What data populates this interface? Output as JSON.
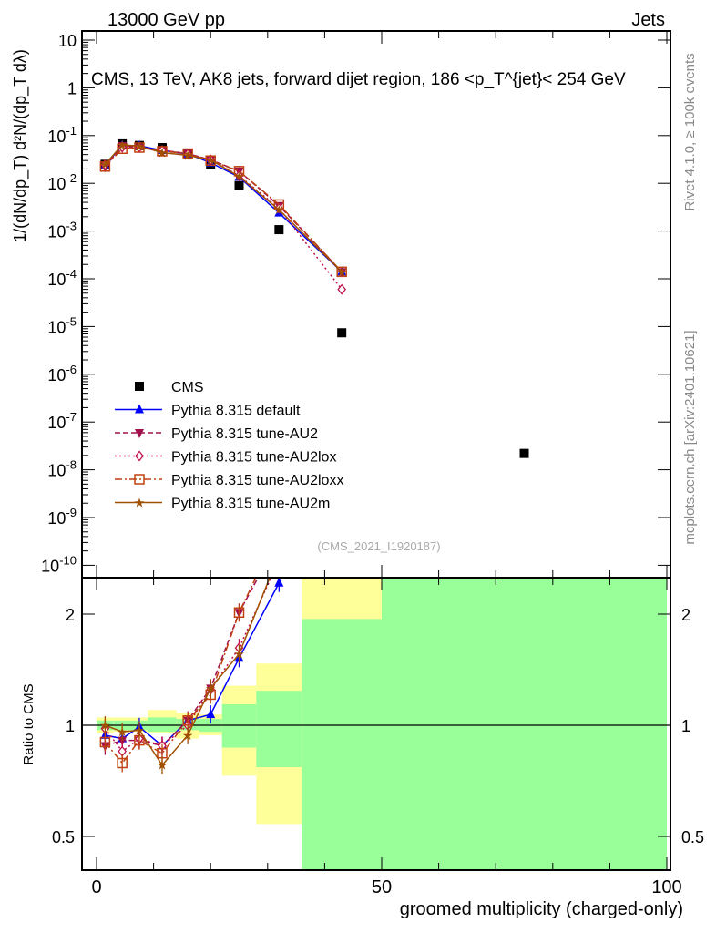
{
  "header": {
    "left": "13000 GeV pp",
    "right": "Jets"
  },
  "side": {
    "rivet": "Rivet 4.1.0, ≥ 100k events",
    "mcplots": "mcplots.cern.ch [arXiv:2401.10621]"
  },
  "chart_data": [
    {
      "type": "scatter",
      "title": "CMS, 13 TeV, AK8 jets, forward dijet region, 186 <p_T^{jet}< 254 GeV",
      "ylabel": "1/(dN/dp_T) d²N/(dp_T dλ)",
      "yscale": "log",
      "ylim": [
        1e-10,
        10
      ],
      "xlim": [
        -1,
        100
      ],
      "watermark": "(CMS_2021_I1920187)",
      "yticks": [
        "10",
        "1",
        "10^{-1}",
        "10^{-2}",
        "10^{-3}",
        "10^{-4}",
        "10^{-5}",
        "10^{-6}",
        "10^{-7}",
        "10^{-8}",
        "10^{-9}",
        "10^{-10}"
      ],
      "legend_position": "bottom-left",
      "x": [
        1.5,
        4.5,
        7.5,
        11.5,
        16,
        20,
        25,
        32,
        43,
        75
      ],
      "series": [
        {
          "name": "CMS",
          "color": "#000000",
          "marker": "square",
          "style": "none",
          "values": [
            0.025,
            0.067,
            0.062,
            0.056,
            0.041,
            0.025,
            0.0089,
            0.00107,
            7.4e-06,
            2.2e-08
          ]
        },
        {
          "name": "Pythia 8.315 default",
          "color": "#0000ff",
          "marker": "triangle-up",
          "style": "solid",
          "values": [
            0.024,
            0.062,
            0.061,
            0.049,
            0.041,
            0.027,
            0.0135,
            0.0024,
            0.00014
          ]
        },
        {
          "name": "Pythia 8.315 tune-AU2",
          "color": "#a0104a",
          "marker": "triangle-down",
          "style": "dashed",
          "values": [
            0.022,
            0.061,
            0.056,
            0.049,
            0.042,
            0.031,
            0.018,
            0.0034,
            0.00014
          ]
        },
        {
          "name": "Pythia 8.315 tune-AU2lox",
          "color": "#c0104a",
          "marker": "diamond",
          "style": "dotted",
          "values": [
            0.0245,
            0.057,
            0.057,
            0.049,
            0.041,
            0.031,
            0.0144,
            0.003,
            6e-05
          ]
        },
        {
          "name": "Pythia 8.315 tune-AU2loxx",
          "color": "#c04010",
          "marker": "open-square",
          "style": "dashdot",
          "values": [
            0.0225,
            0.053,
            0.056,
            0.047,
            0.042,
            0.03,
            0.018,
            0.0036,
            0.00014
          ]
        },
        {
          "name": "Pythia 8.315 tune-AU2m",
          "color": "#a05000",
          "marker": "star",
          "style": "solid",
          "values": [
            0.025,
            0.064,
            0.06,
            0.044,
            0.0385,
            0.031,
            0.0139,
            0.0028,
            0.00014
          ]
        }
      ]
    },
    {
      "type": "line",
      "ylabel": "Ratio to CMS",
      "xlabel": "groomed multiplicity (charged-only)",
      "yscale": "log",
      "ylim": [
        0.406,
        2.51
      ],
      "yticks": [
        "0.5",
        "1",
        "2"
      ],
      "xticks": [
        "0",
        "50",
        "100"
      ],
      "bin_edges": [
        0,
        3,
        6,
        9,
        14,
        18,
        22,
        28,
        36,
        50,
        100
      ],
      "band_green": [
        [
          0.97,
          1.03
        ],
        [
          0.97,
          1.03
        ],
        [
          0.97,
          1.03
        ],
        [
          0.96,
          1.05
        ],
        [
          0.97,
          1.04
        ],
        [
          0.96,
          1.04
        ],
        [
          0.87,
          1.14
        ],
        [
          0.77,
          1.24
        ],
        [
          0.1,
          1.94
        ],
        [
          0.1,
          10
        ]
      ],
      "band_yellow": [
        [
          0.95,
          1.05
        ],
        [
          0.96,
          1.05
        ],
        [
          0.96,
          1.05
        ],
        [
          0.95,
          1.1
        ],
        [
          0.92,
          1.08
        ],
        [
          0.94,
          1.07
        ],
        [
          0.73,
          1.28
        ],
        [
          0.54,
          1.47
        ],
        [
          0.1,
          10
        ],
        [
          0.1,
          10
        ]
      ],
      "x": [
        1.5,
        4.5,
        7.5,
        11.5,
        16,
        20,
        25,
        32
      ],
      "series": [
        {
          "name": "default",
          "color": "#0000ff",
          "marker": "triangle-up",
          "style": "solid",
          "values": [
            0.94,
            0.92,
            0.99,
            0.88,
            1.03,
            1.07,
            1.52,
            2.43
          ]
        },
        {
          "name": "tune-AU2",
          "color": "#a0104a",
          "marker": "triangle-down",
          "style": "dashed",
          "values": [
            0.88,
            0.91,
            0.91,
            0.88,
            1.03,
            1.26,
            2.02,
            3.2
          ]
        },
        {
          "name": "tune-AU2lox",
          "color": "#c0104a",
          "marker": "diamond",
          "style": "dotted",
          "values": [
            0.98,
            0.85,
            0.92,
            0.88,
            1.0,
            1.25,
            1.62,
            2.8
          ]
        },
        {
          "name": "tune-AU2loxx",
          "color": "#c04010",
          "marker": "open-square",
          "style": "dashdot",
          "values": [
            0.9,
            0.79,
            0.91,
            0.84,
            1.03,
            1.21,
            2.02,
            3.4
          ]
        },
        {
          "name": "tune-AU2m",
          "color": "#a05000",
          "marker": "star",
          "style": "solid",
          "values": [
            1.0,
            0.96,
            0.97,
            0.78,
            0.94,
            1.26,
            1.56,
            2.9
          ]
        }
      ]
    }
  ]
}
